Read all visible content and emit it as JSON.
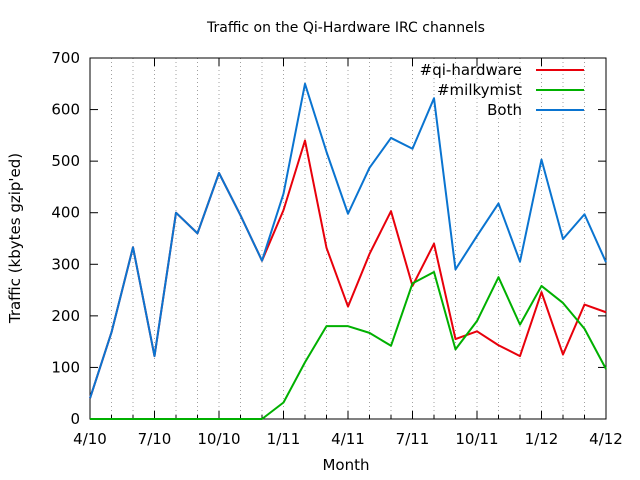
{
  "chart_data": {
    "type": "line",
    "title": "Traffic on the Qi-Hardware IRC channels",
    "xlabel": "Month",
    "ylabel": "Traffic (kbytes gzip'ed)",
    "ylim": [
      0,
      700
    ],
    "yticks": [
      0,
      100,
      200,
      300,
      400,
      500,
      600,
      700
    ],
    "xlim": [
      0,
      24
    ],
    "xticks": [
      {
        "pos": 0,
        "label": "4/10"
      },
      {
        "pos": 3,
        "label": "7/10"
      },
      {
        "pos": 6,
        "label": "10/10"
      },
      {
        "pos": 9,
        "label": "1/11"
      },
      {
        "pos": 12,
        "label": "4/11"
      },
      {
        "pos": 15,
        "label": "7/11"
      },
      {
        "pos": 18,
        "label": "10/11"
      },
      {
        "pos": 21,
        "label": "1/12"
      },
      {
        "pos": 24,
        "label": "4/12"
      }
    ],
    "grid": "vertical dotted lines at each month",
    "legend_position": "top-right",
    "x": [
      "4/10",
      "5/10",
      "6/10",
      "7/10",
      "8/10",
      "9/10",
      "10/10",
      "11/10",
      "12/10",
      "1/11",
      "2/11",
      "3/11",
      "4/11",
      "5/11",
      "6/11",
      "7/11",
      "8/11",
      "9/11",
      "10/11",
      "11/11",
      "12/11",
      "1/12",
      "2/12",
      "3/12",
      "4/12"
    ],
    "series": [
      {
        "name": "#qi-hardware",
        "color": "#e8000b",
        "values": [
          40,
          168,
          333,
          122,
          400,
          360,
          477,
          395,
          307,
          405,
          540,
          332,
          218,
          320,
          403,
          258,
          340,
          155,
          170,
          143,
          122,
          246,
          125,
          222,
          207
        ]
      },
      {
        "name": "#milkymist",
        "color": "#00b000",
        "values": [
          0,
          0,
          0,
          0,
          0,
          0,
          0,
          0,
          0,
          32,
          110,
          180,
          180,
          167,
          142,
          263,
          285,
          135,
          190,
          275,
          183,
          258,
          225,
          175,
          97
        ]
      },
      {
        "name": "Both",
        "color": "#0a74d0",
        "values": [
          40,
          168,
          333,
          122,
          400,
          360,
          477,
          395,
          307,
          437,
          650,
          518,
          398,
          487,
          545,
          524,
          622,
          290,
          355,
          418,
          305,
          503,
          349,
          397,
          304
        ]
      }
    ]
  }
}
